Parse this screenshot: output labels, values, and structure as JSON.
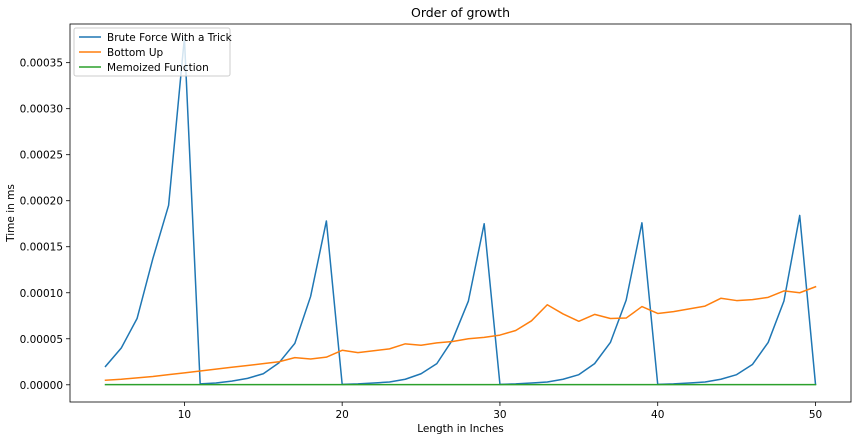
{
  "chart_data": {
    "type": "line",
    "title": "Order of growth",
    "xlabel": "Length in Inches",
    "ylabel": "Time in ms",
    "xlim": [
      2.75,
      52.25
    ],
    "ylim": [
      -1.87e-05,
      0.000392
    ],
    "xticks": [
      10,
      20,
      30,
      40,
      50
    ],
    "yticks": [
      0.0,
      5e-05,
      0.0001,
      0.00015,
      0.0002,
      0.00025,
      0.0003,
      0.00035
    ],
    "ytick_labels": [
      "0.00000",
      "0.00005",
      "0.00010",
      "0.00015",
      "0.00020",
      "0.00025",
      "0.00030",
      "0.00035"
    ],
    "grid": false,
    "legend": "top-left",
    "x": [
      5,
      6,
      7,
      8,
      9,
      10,
      11,
      12,
      13,
      14,
      15,
      16,
      17,
      18,
      19,
      20,
      21,
      22,
      23,
      24,
      25,
      26,
      27,
      28,
      29,
      30,
      31,
      32,
      33,
      34,
      35,
      36,
      37,
      38,
      39,
      40,
      41,
      42,
      43,
      44,
      45,
      46,
      47,
      48,
      49,
      50
    ],
    "series": [
      {
        "name": "Brute Force With a Trick",
        "color": "#1f77b4",
        "values": [
          2e-05,
          4e-05,
          7.2e-05,
          0.000137,
          0.000195,
          0.000377,
          1e-06,
          2e-06,
          4e-06,
          7e-06,
          1.2e-05,
          2.4e-05,
          4.5e-05,
          9.6e-05,
          0.000178,
          5e-07,
          1e-06,
          2e-06,
          3e-06,
          6e-06,
          1.2e-05,
          2.3e-05,
          4.9e-05,
          9.1e-05,
          0.000175,
          5e-07,
          1e-06,
          2e-06,
          3e-06,
          6e-06,
          1.1e-05,
          2.3e-05,
          4.6e-05,
          9.2e-05,
          0.000176,
          5e-07,
          1e-06,
          2e-06,
          3e-06,
          6e-06,
          1.1e-05,
          2.2e-05,
          4.6e-05,
          9.1e-05,
          0.000184,
          5e-07
        ]
      },
      {
        "name": "Bottom Up",
        "color": "#ff7f0e",
        "values": [
          5e-06,
          6e-06,
          7.5e-06,
          9e-06,
          1.1e-05,
          1.3e-05,
          1.5e-05,
          1.7e-05,
          1.9e-05,
          2.1e-05,
          2.3e-05,
          2.5e-05,
          2.95e-05,
          2.8e-05,
          3e-05,
          3.75e-05,
          3.5e-05,
          3.7e-05,
          3.9e-05,
          4.45e-05,
          4.3e-05,
          4.55e-05,
          4.7e-05,
          5e-05,
          5.15e-05,
          5.4e-05,
          5.9e-05,
          6.95e-05,
          8.7e-05,
          7.7e-05,
          6.9e-05,
          7.65e-05,
          7.2e-05,
          7.25e-05,
          8.5e-05,
          7.75e-05,
          7.95e-05,
          8.25e-05,
          8.55e-05,
          9.4e-05,
          9.15e-05,
          9.25e-05,
          9.5e-05,
          0.000102,
          0.0001,
          0.0001065
        ]
      },
      {
        "name": "Memoized Function",
        "color": "#2ca02c",
        "values": [
          2e-07,
          2e-07,
          2e-07,
          2e-07,
          2e-07,
          2e-07,
          2e-07,
          2e-07,
          2e-07,
          2e-07,
          2e-07,
          2e-07,
          2e-07,
          2e-07,
          2e-07,
          2e-07,
          2e-07,
          2e-07,
          2e-07,
          2e-07,
          2e-07,
          2e-07,
          2e-07,
          2e-07,
          2e-07,
          2e-07,
          2e-07,
          2e-07,
          2e-07,
          2e-07,
          2e-07,
          2e-07,
          2e-07,
          2e-07,
          2e-07,
          2e-07,
          2e-07,
          2e-07,
          2e-07,
          2e-07,
          2e-07,
          2e-07,
          2e-07,
          2e-07,
          2e-07,
          2e-07
        ]
      }
    ]
  }
}
